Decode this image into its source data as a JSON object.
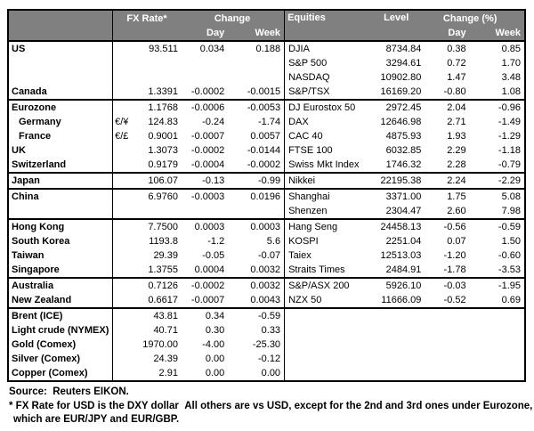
{
  "colors": {
    "header_bg": "#808080",
    "header_text": "#ffffff",
    "border": "#000000",
    "text": "#000000",
    "page_bg": "#ffffff"
  },
  "header": {
    "fx": {
      "rate": "FX Rate*",
      "change": "Change",
      "day": "Day",
      "week": "Week"
    },
    "equities": {
      "name": "Equities",
      "level": "Level",
      "change": "Change (%)",
      "day": "Day",
      "week": "Week"
    }
  },
  "rows": [
    {
      "country": "US",
      "symbol": "",
      "rate": "93.511",
      "fx_day": "0.034",
      "fx_week": "0.188",
      "equity": "DJIA",
      "level": "8734.84",
      "eq_day": "0.38",
      "eq_week": "0.85",
      "indent": false,
      "group_start": false
    },
    {
      "country": "",
      "symbol": "",
      "rate": "",
      "fx_day": "",
      "fx_week": "",
      "equity": "S&P 500",
      "level": "3294.61",
      "eq_day": "0.72",
      "eq_week": "1.70",
      "indent": false,
      "group_start": false
    },
    {
      "country": "",
      "symbol": "",
      "rate": "",
      "fx_day": "",
      "fx_week": "",
      "equity": "NASDAQ",
      "level": "10902.80",
      "eq_day": "1.47",
      "eq_week": "3.48",
      "indent": false,
      "group_start": false
    },
    {
      "country": "Canada",
      "symbol": "",
      "rate": "1.3391",
      "fx_day": "-0.0002",
      "fx_week": "-0.0015",
      "equity": "S&P/TSX",
      "level": "16169.20",
      "eq_day": "-0.80",
      "eq_week": "1.08",
      "indent": false,
      "group_start": false
    },
    {
      "country": "Eurozone",
      "symbol": "",
      "rate": "1.1768",
      "fx_day": "-0.0006",
      "fx_week": "-0.0053",
      "equity": "DJ Eurostox 50",
      "level": "2972.45",
      "eq_day": "2.04",
      "eq_week": "-0.96",
      "indent": false,
      "group_start": true
    },
    {
      "country": "Germany",
      "symbol": "€/¥",
      "rate": "124.83",
      "fx_day": "-0.24",
      "fx_week": "-1.74",
      "equity": "DAX",
      "level": "12646.98",
      "eq_day": "2.71",
      "eq_week": "-1.49",
      "indent": true,
      "group_start": false
    },
    {
      "country": "France",
      "symbol": "€/£",
      "rate": "0.9001",
      "fx_day": "-0.0007",
      "fx_week": "0.0057",
      "equity": "CAC 40",
      "level": "4875.93",
      "eq_day": "1.93",
      "eq_week": "-1.29",
      "indent": true,
      "group_start": false
    },
    {
      "country": "UK",
      "symbol": "",
      "rate": "1.3073",
      "fx_day": "-0.0002",
      "fx_week": "-0.0144",
      "equity": "FTSE 100",
      "level": "6032.85",
      "eq_day": "2.29",
      "eq_week": "-1.18",
      "indent": false,
      "group_start": false
    },
    {
      "country": "Switzerland",
      "symbol": "",
      "rate": "0.9179",
      "fx_day": "-0.0004",
      "fx_week": "-0.0002",
      "equity": "Swiss Mkt Index",
      "level": "1746.32",
      "eq_day": "2.28",
      "eq_week": "-0.79",
      "indent": false,
      "group_start": false
    },
    {
      "country": "Japan",
      "symbol": "",
      "rate": "106.07",
      "fx_day": "-0.13",
      "fx_week": "-0.99",
      "equity": "Nikkei",
      "level": "22195.38",
      "eq_day": "2.24",
      "eq_week": "-2.29",
      "indent": false,
      "group_start": true
    },
    {
      "country": "China",
      "symbol": "",
      "rate": "6.9760",
      "fx_day": "-0.0003",
      "fx_week": "0.0196",
      "equity": "Shanghai",
      "level": "3371.00",
      "eq_day": "1.75",
      "eq_week": "5.08",
      "indent": false,
      "group_start": true
    },
    {
      "country": "",
      "symbol": "",
      "rate": "",
      "fx_day": "",
      "fx_week": "",
      "equity": "Shenzen",
      "level": "2304.47",
      "eq_day": "2.60",
      "eq_week": "7.98",
      "indent": false,
      "group_start": false
    },
    {
      "country": "Hong Kong",
      "symbol": "",
      "rate": "7.7500",
      "fx_day": "0.0003",
      "fx_week": "0.0003",
      "equity": "Hang Seng",
      "level": "24458.13",
      "eq_day": "-0.56",
      "eq_week": "-0.59",
      "indent": false,
      "group_start": true
    },
    {
      "country": "South Korea",
      "symbol": "",
      "rate": "1193.8",
      "fx_day": "-1.2",
      "fx_week": "5.6",
      "equity": "KOSPI",
      "level": "2251.04",
      "eq_day": "0.07",
      "eq_week": "1.50",
      "indent": false,
      "group_start": false
    },
    {
      "country": "Taiwan",
      "symbol": "",
      "rate": "29.39",
      "fx_day": "-0.05",
      "fx_week": "-0.07",
      "equity": "Taiex",
      "level": "12513.03",
      "eq_day": "-1.20",
      "eq_week": "-0.60",
      "indent": false,
      "group_start": false
    },
    {
      "country": "Singapore",
      "symbol": "",
      "rate": "1.3755",
      "fx_day": "0.0004",
      "fx_week": "0.0032",
      "equity": "Straits Times",
      "level": "2484.91",
      "eq_day": "-1.78",
      "eq_week": "-3.53",
      "indent": false,
      "group_start": false
    },
    {
      "country": "Australia",
      "symbol": "",
      "rate": "0.7126",
      "fx_day": "-0.0002",
      "fx_week": "0.0032",
      "equity": "S&P/ASX 200",
      "level": "5926.10",
      "eq_day": "-0.03",
      "eq_week": "-1.95",
      "indent": false,
      "group_start": true
    },
    {
      "country": "New Zealand",
      "symbol": "",
      "rate": "0.6617",
      "fx_day": "-0.0007",
      "fx_week": "0.0043",
      "equity": "NZX 50",
      "level": "11666.09",
      "eq_day": "-0.52",
      "eq_week": "0.69",
      "indent": false,
      "group_start": false
    },
    {
      "country": "Brent (ICE)",
      "symbol": "",
      "rate": "43.81",
      "fx_day": "0.34",
      "fx_week": "-0.59",
      "equity": "",
      "level": "",
      "eq_day": "",
      "eq_week": "",
      "indent": false,
      "group_start": true
    },
    {
      "country": "Light crude (NYMEX)",
      "symbol": "",
      "rate": "40.71",
      "fx_day": "0.30",
      "fx_week": "0.33",
      "equity": "",
      "level": "",
      "eq_day": "",
      "eq_week": "",
      "indent": false,
      "group_start": false
    },
    {
      "country": "Gold (Comex)",
      "symbol": "",
      "rate": "1970.00",
      "fx_day": "-4.00",
      "fx_week": "-25.30",
      "equity": "",
      "level": "",
      "eq_day": "",
      "eq_week": "",
      "indent": false,
      "group_start": false
    },
    {
      "country": "Silver (Comex)",
      "symbol": "",
      "rate": "24.39",
      "fx_day": "0.00",
      "fx_week": "-0.12",
      "equity": "",
      "level": "",
      "eq_day": "",
      "eq_week": "",
      "indent": false,
      "group_start": false
    },
    {
      "country": "Copper (Comex)",
      "symbol": "",
      "rate": "2.91",
      "fx_day": "0.00",
      "fx_week": "0.00",
      "equity": "",
      "level": "",
      "eq_day": "",
      "eq_week": "",
      "indent": false,
      "group_start": false
    }
  ],
  "footer": {
    "source": "Source:  Reuters EIKON.",
    "note_line1": "* FX Rate for USD is the DXY dollar  All others are vs USD, except for the 2nd and 3rd ones under Eurozone,",
    "note_line2": "which are EUR/JPY and EUR/GBP."
  }
}
